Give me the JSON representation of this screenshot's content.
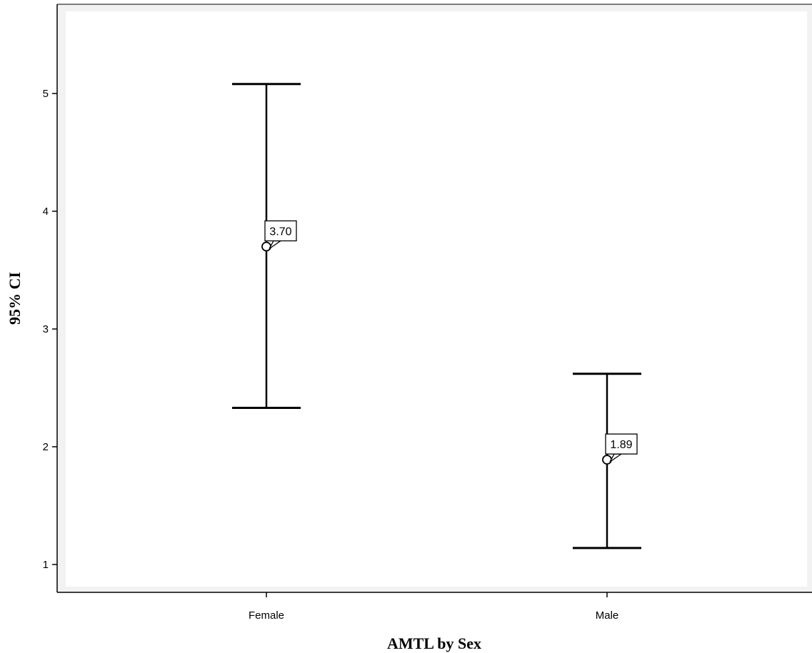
{
  "chart_data": {
    "type": "errorbar",
    "title": "",
    "xlabel": "AMTL by Sex",
    "ylabel": "95% CI",
    "categories": [
      "Female",
      "Male"
    ],
    "means": [
      3.7,
      1.89
    ],
    "mean_labels": [
      "3.70",
      "1.89"
    ],
    "lower": [
      2.33,
      1.14
    ],
    "upper": [
      5.08,
      2.62
    ],
    "ylim": [
      0.8,
      5.75
    ],
    "yticks": [
      1,
      2,
      3,
      4,
      5
    ],
    "grid": false,
    "legend": "none",
    "colors": {
      "line": "#000000",
      "plot_background": "#f2f2f2",
      "plot_inner": "#ffffff"
    }
  }
}
